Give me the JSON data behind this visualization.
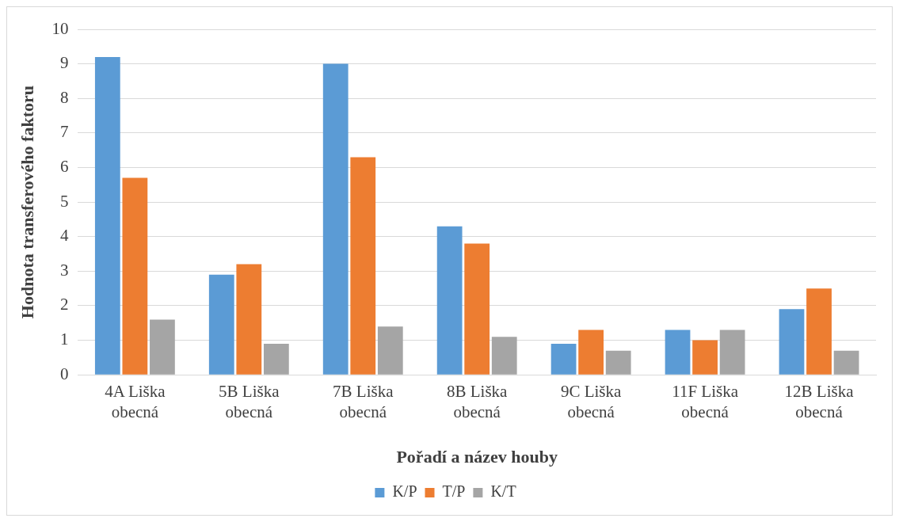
{
  "chart_data": {
    "type": "bar",
    "xlabel": "Pořadí a název houby",
    "ylabel": "Hodnota transferového faktoru",
    "categories": [
      "4A Liška obecná",
      "5B Liška obecná",
      "7B Liška obecná",
      "8B Liška obecná",
      "9C Liška obecná",
      "11F Liška obecná",
      "12B Liška obecná"
    ],
    "series": [
      {
        "name": "K/P",
        "color": "#5b9bd5",
        "values": [
          9.2,
          2.9,
          9.0,
          4.3,
          0.9,
          1.3,
          1.9
        ]
      },
      {
        "name": "T/P",
        "color": "#ed7d31",
        "values": [
          5.7,
          3.2,
          6.3,
          3.8,
          1.3,
          1.0,
          2.5
        ]
      },
      {
        "name": "K/T",
        "color": "#a5a5a5",
        "values": [
          1.6,
          0.9,
          1.4,
          1.1,
          0.7,
          1.3,
          0.7
        ]
      }
    ],
    "ylim": [
      0,
      10
    ],
    "yticks": [
      0,
      1,
      2,
      3,
      4,
      5,
      6,
      7,
      8,
      9,
      10
    ],
    "grid": "y",
    "legend": "bottom"
  }
}
